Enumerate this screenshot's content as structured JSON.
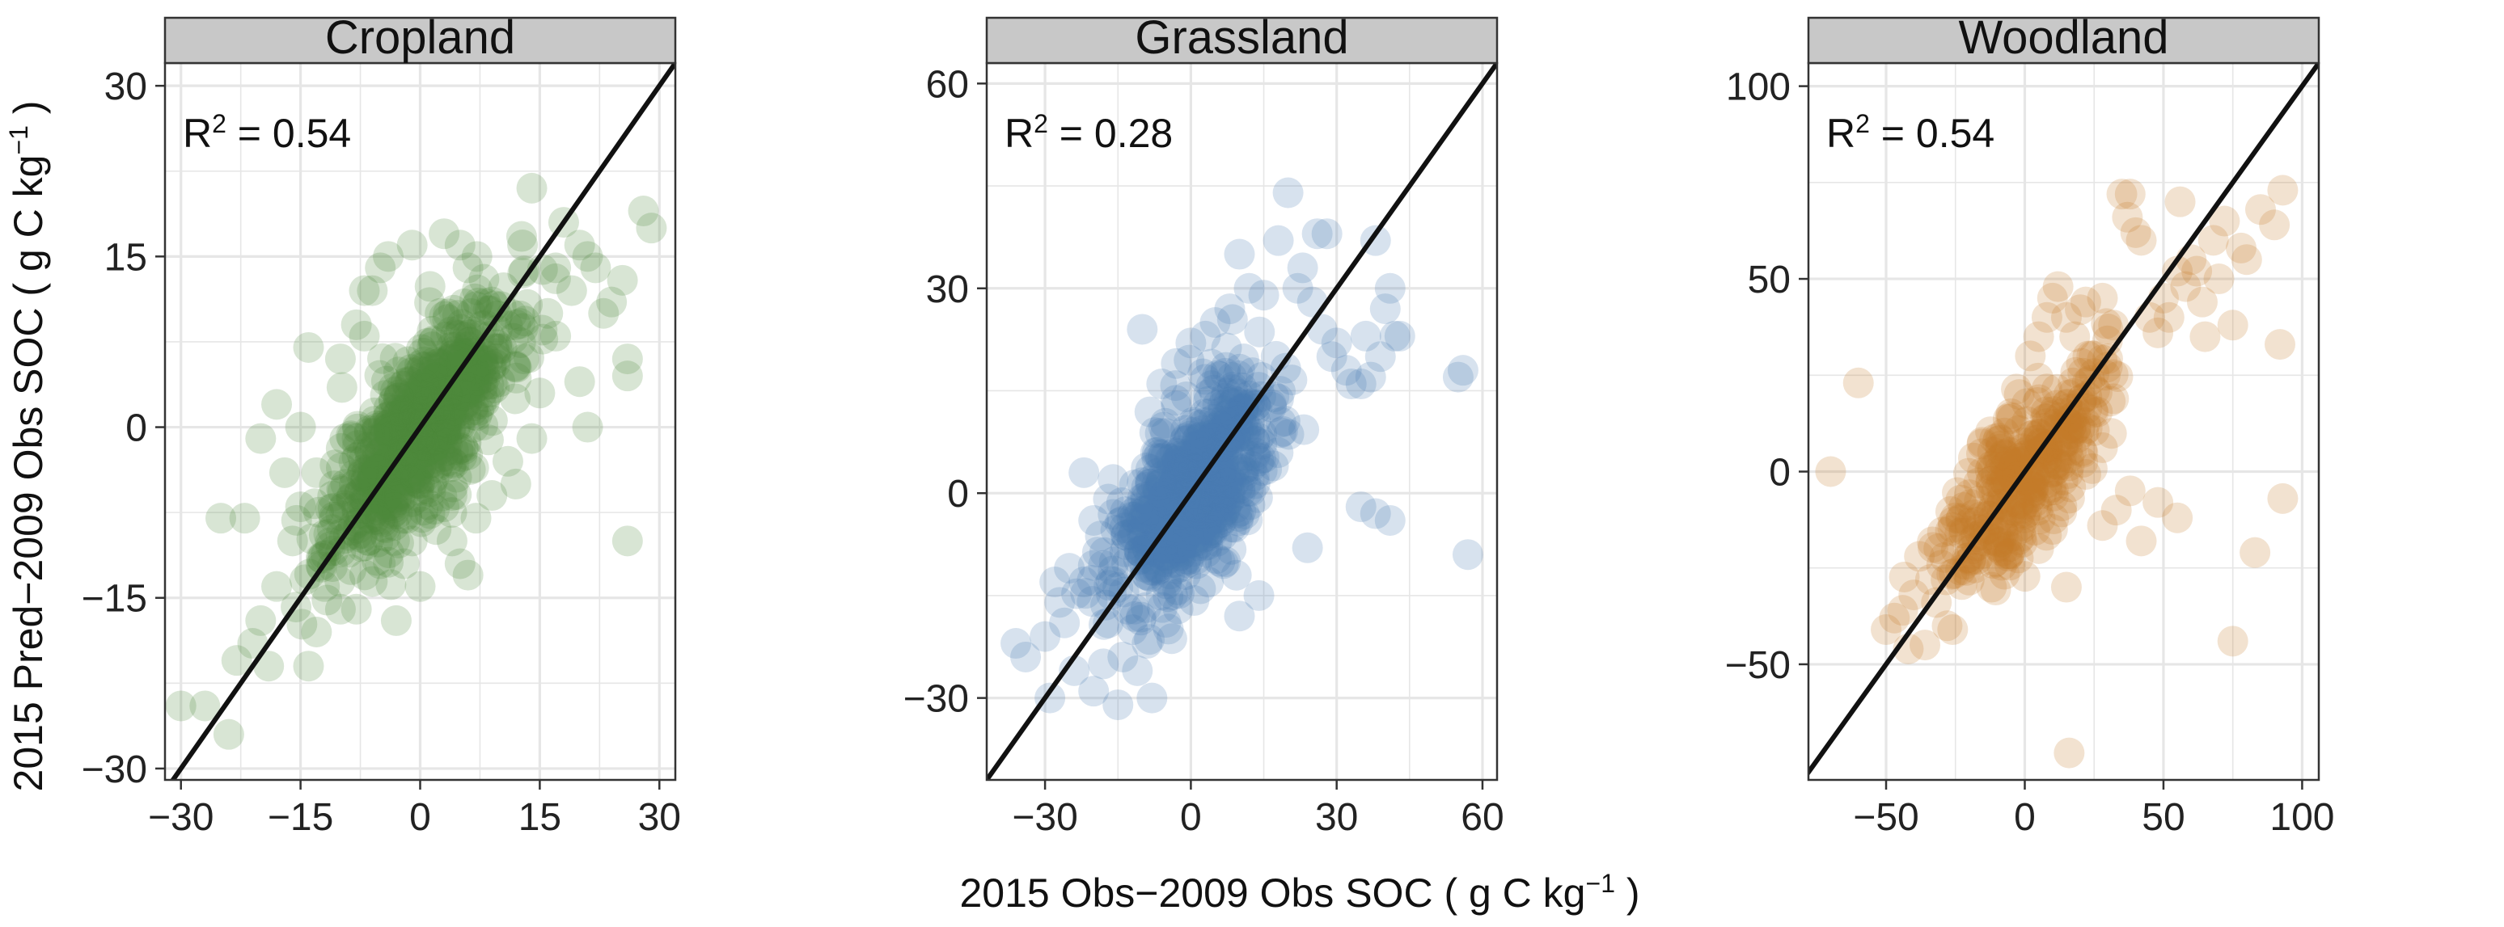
{
  "chart_data": [
    {
      "type": "scatter",
      "panel": "Cropland",
      "title": "Cropland",
      "annotation": {
        "prefix": "R",
        "sup": "2",
        "suffix": " = 0.54"
      },
      "color": "#4c8a3c",
      "point_opacity": 0.22,
      "xlim": [
        -32,
        32
      ],
      "ylim": [
        -31,
        32
      ],
      "xticks": [
        -30,
        -15,
        0,
        15,
        30
      ],
      "xtick_labels": [
        "−30",
        "−15",
        "0",
        "15",
        "30"
      ],
      "yticks": [
        -30,
        -15,
        0,
        15,
        30
      ],
      "ytick_labels": [
        "−30",
        "−15",
        "0",
        "15",
        "30"
      ],
      "reference_line": "y = x",
      "cloud": {
        "n": 700,
        "sx": 5.5,
        "rho": 0.74,
        "seed": 11
      },
      "points": [
        [
          -30,
          -24.5
        ],
        [
          -27,
          -24.5
        ],
        [
          -24,
          -27
        ],
        [
          -23,
          -20.5
        ],
        [
          -21,
          -19
        ],
        [
          -20,
          -17
        ],
        [
          -19,
          -21
        ],
        [
          -18,
          -14
        ],
        [
          -16,
          -10
        ],
        [
          -14,
          -21
        ],
        [
          -13,
          -18
        ],
        [
          -22,
          -8
        ],
        [
          -25,
          -8
        ],
        [
          -12,
          -14
        ],
        [
          -20,
          -1
        ],
        [
          -18,
          2
        ],
        [
          -15,
          0
        ],
        [
          -13,
          -4
        ],
        [
          -10,
          6
        ],
        [
          -8,
          9
        ],
        [
          -14,
          7
        ],
        [
          -7,
          8
        ],
        [
          -6,
          12
        ],
        [
          -5,
          14
        ],
        [
          -7,
          12
        ],
        [
          -4,
          15
        ],
        [
          -1,
          16
        ],
        [
          3,
          17
        ],
        [
          5,
          16
        ],
        [
          6,
          14
        ],
        [
          8,
          13
        ],
        [
          9,
          11
        ],
        [
          10,
          4
        ],
        [
          12,
          9
        ],
        [
          13,
          6
        ],
        [
          14,
          -1
        ],
        [
          15,
          3
        ],
        [
          16,
          10
        ],
        [
          17,
          14
        ],
        [
          18,
          18
        ],
        [
          19,
          12
        ],
        [
          14,
          21
        ],
        [
          17,
          8
        ],
        [
          20,
          16
        ],
        [
          21,
          15
        ],
        [
          22,
          14
        ],
        [
          23,
          10
        ],
        [
          24,
          11
        ],
        [
          21,
          0
        ],
        [
          20,
          4
        ],
        [
          26,
          6
        ],
        [
          26,
          4.5
        ],
        [
          28,
          19
        ],
        [
          29,
          17.5
        ],
        [
          26,
          -10
        ],
        [
          11,
          -3
        ],
        [
          9,
          -6
        ],
        [
          7,
          -8
        ],
        [
          5,
          -12
        ],
        [
          6,
          -13
        ],
        [
          4,
          -10
        ],
        [
          2,
          -9
        ],
        [
          -2,
          -12
        ],
        [
          -5,
          -12
        ],
        [
          -8,
          -16
        ],
        [
          -3,
          -17
        ],
        [
          0,
          -14
        ],
        [
          -10,
          -16
        ],
        [
          -11,
          -9
        ],
        [
          12,
          -5
        ],
        [
          4,
          -6
        ],
        [
          -1,
          -10
        ],
        [
          3,
          -7
        ],
        [
          -15,
          -7
        ],
        [
          -17,
          -4
        ],
        [
          -9,
          -11
        ]
      ]
    },
    {
      "type": "scatter",
      "panel": "Grassland",
      "title": "Grassland",
      "annotation": {
        "prefix": "R",
        "sup": "2",
        "suffix": " = 0.28"
      },
      "color": "#4a7bb1",
      "point_opacity": 0.22,
      "xlim": [
        -42,
        63
      ],
      "ylim": [
        -42,
        63
      ],
      "xticks": [
        -30,
        0,
        30,
        60
      ],
      "xtick_labels": [
        "−30",
        "0",
        "30",
        "60"
      ],
      "yticks": [
        -30,
        0,
        30,
        60
      ],
      "ytick_labels": [
        "−30",
        "0",
        "30",
        "60"
      ],
      "reference_line": "y = x",
      "cloud": {
        "n": 650,
        "sx": 8,
        "rho": 0.6,
        "seed": 23
      },
      "points": [
        [
          -36,
          -22
        ],
        [
          -34,
          -24
        ],
        [
          -30,
          -21
        ],
        [
          -29,
          -30
        ],
        [
          -28,
          -13
        ],
        [
          -27,
          -16
        ],
        [
          -26,
          -19
        ],
        [
          -25,
          -11
        ],
        [
          -24,
          -26
        ],
        [
          -22,
          -13
        ],
        [
          -20,
          -29
        ],
        [
          -18,
          -25
        ],
        [
          -17,
          -19
        ],
        [
          -15,
          -31
        ],
        [
          -14,
          -24
        ],
        [
          -13,
          -17
        ],
        [
          -12,
          -20
        ],
        [
          -11,
          -26
        ],
        [
          -9,
          -22
        ],
        [
          -8,
          -30
        ],
        [
          -7,
          -11
        ],
        [
          -10,
          24
        ],
        [
          -6,
          16
        ],
        [
          -3,
          19
        ],
        [
          0,
          22
        ],
        [
          3,
          23
        ],
        [
          5,
          25
        ],
        [
          8,
          27
        ],
        [
          10,
          35
        ],
        [
          12,
          30
        ],
        [
          15,
          29
        ],
        [
          18,
          37
        ],
        [
          20,
          44
        ],
        [
          22,
          30
        ],
        [
          23,
          33
        ],
        [
          25,
          28
        ],
        [
          26,
          38
        ],
        [
          27,
          24
        ],
        [
          28,
          38
        ],
        [
          29,
          20
        ],
        [
          30,
          22
        ],
        [
          32,
          18
        ],
        [
          33,
          16
        ],
        [
          36,
          23
        ],
        [
          38,
          37
        ],
        [
          39,
          20
        ],
        [
          40,
          27
        ],
        [
          41,
          30
        ],
        [
          42,
          23
        ],
        [
          43,
          23
        ],
        [
          37,
          17
        ],
        [
          35,
          16
        ],
        [
          55,
          17
        ],
        [
          56,
          18
        ],
        [
          57,
          -9
        ],
        [
          35,
          -2
        ],
        [
          38,
          -3
        ],
        [
          41,
          -4
        ],
        [
          24,
          -8
        ],
        [
          14,
          -15
        ],
        [
          10,
          -18
        ],
        [
          6,
          -10
        ],
        [
          2,
          -14
        ],
        [
          -2,
          -8
        ],
        [
          9,
          -5
        ],
        [
          17,
          4
        ],
        [
          -20,
          -4
        ],
        [
          -16,
          2
        ],
        [
          -22,
          3
        ]
      ]
    },
    {
      "type": "scatter",
      "panel": "Woodland",
      "title": "Woodland",
      "annotation": {
        "prefix": "R",
        "sup": "2",
        "suffix": " = 0.54"
      },
      "color": "#c67a28",
      "point_opacity": 0.22,
      "xlim": [
        -78,
        106
      ],
      "ylim": [
        -80,
        106
      ],
      "xticks": [
        -50,
        0,
        50,
        100
      ],
      "xtick_labels": [
        "−50",
        "0",
        "50",
        "100"
      ],
      "yticks": [
        -50,
        0,
        50,
        100
      ],
      "ytick_labels": [
        "−50",
        "0",
        "50",
        "100"
      ],
      "reference_line": "y = x",
      "cloud": {
        "n": 330,
        "sx": 14,
        "rho": 0.72,
        "seed": 37
      },
      "points": [
        [
          -70,
          0
        ],
        [
          -60,
          23
        ],
        [
          -50,
          -41
        ],
        [
          -47,
          -38
        ],
        [
          -44,
          -36
        ],
        [
          -42,
          -46
        ],
        [
          -40,
          -32
        ],
        [
          -38,
          -22
        ],
        [
          -36,
          -45
        ],
        [
          -34,
          -28
        ],
        [
          -31,
          -20
        ],
        [
          -28,
          -40
        ],
        [
          -26,
          -41
        ],
        [
          -25,
          -12
        ],
        [
          -22,
          -16
        ],
        [
          -20,
          -6
        ],
        [
          -18,
          -25
        ],
        [
          -15,
          -18
        ],
        [
          -12,
          -30
        ],
        [
          -10,
          -10
        ],
        [
          -8,
          -5
        ],
        [
          -5,
          15
        ],
        [
          -2,
          20
        ],
        [
          2,
          30
        ],
        [
          5,
          35
        ],
        [
          8,
          40
        ],
        [
          10,
          45
        ],
        [
          12,
          48
        ],
        [
          15,
          40
        ],
        [
          18,
          35
        ],
        [
          20,
          42
        ],
        [
          22,
          44
        ],
        [
          25,
          30
        ],
        [
          28,
          45
        ],
        [
          30,
          37
        ],
        [
          32,
          38
        ],
        [
          35,
          72
        ],
        [
          37,
          66
        ],
        [
          40,
          62
        ],
        [
          42,
          60
        ],
        [
          38,
          72
        ],
        [
          45,
          40
        ],
        [
          48,
          36
        ],
        [
          50,
          45
        ],
        [
          52,
          40
        ],
        [
          55,
          52
        ],
        [
          56,
          70
        ],
        [
          58,
          48
        ],
        [
          60,
          55
        ],
        [
          62,
          52
        ],
        [
          64,
          44
        ],
        [
          65,
          35
        ],
        [
          68,
          60
        ],
        [
          70,
          50
        ],
        [
          72,
          65
        ],
        [
          75,
          38
        ],
        [
          78,
          58
        ],
        [
          80,
          55
        ],
        [
          85,
          68
        ],
        [
          90,
          64
        ],
        [
          93,
          73
        ],
        [
          92,
          33
        ],
        [
          93,
          -7
        ],
        [
          83,
          -21
        ],
        [
          75,
          -44
        ],
        [
          55,
          -12
        ],
        [
          48,
          -8
        ],
        [
          42,
          -18
        ],
        [
          38,
          -5
        ],
        [
          33,
          -10
        ],
        [
          28,
          -14
        ],
        [
          15,
          -30
        ],
        [
          16,
          -73
        ],
        [
          10,
          -15
        ],
        [
          5,
          -20
        ],
        [
          0,
          -12
        ]
      ]
    }
  ],
  "axes": {
    "x_title": {
      "main": "2015 Obs−2009 Obs SOC ( g C kg",
      "sup": "−1",
      "end": " )"
    },
    "y_title": {
      "main": "2015 Pred−2009 Obs SOC ( g C kg",
      "sup": "−1",
      "end": " )"
    }
  },
  "colors": {
    "strip_bg": "#c8c8c8",
    "grid": "#e6e6e6",
    "frame": "#333333",
    "ref_line": "#111111"
  }
}
